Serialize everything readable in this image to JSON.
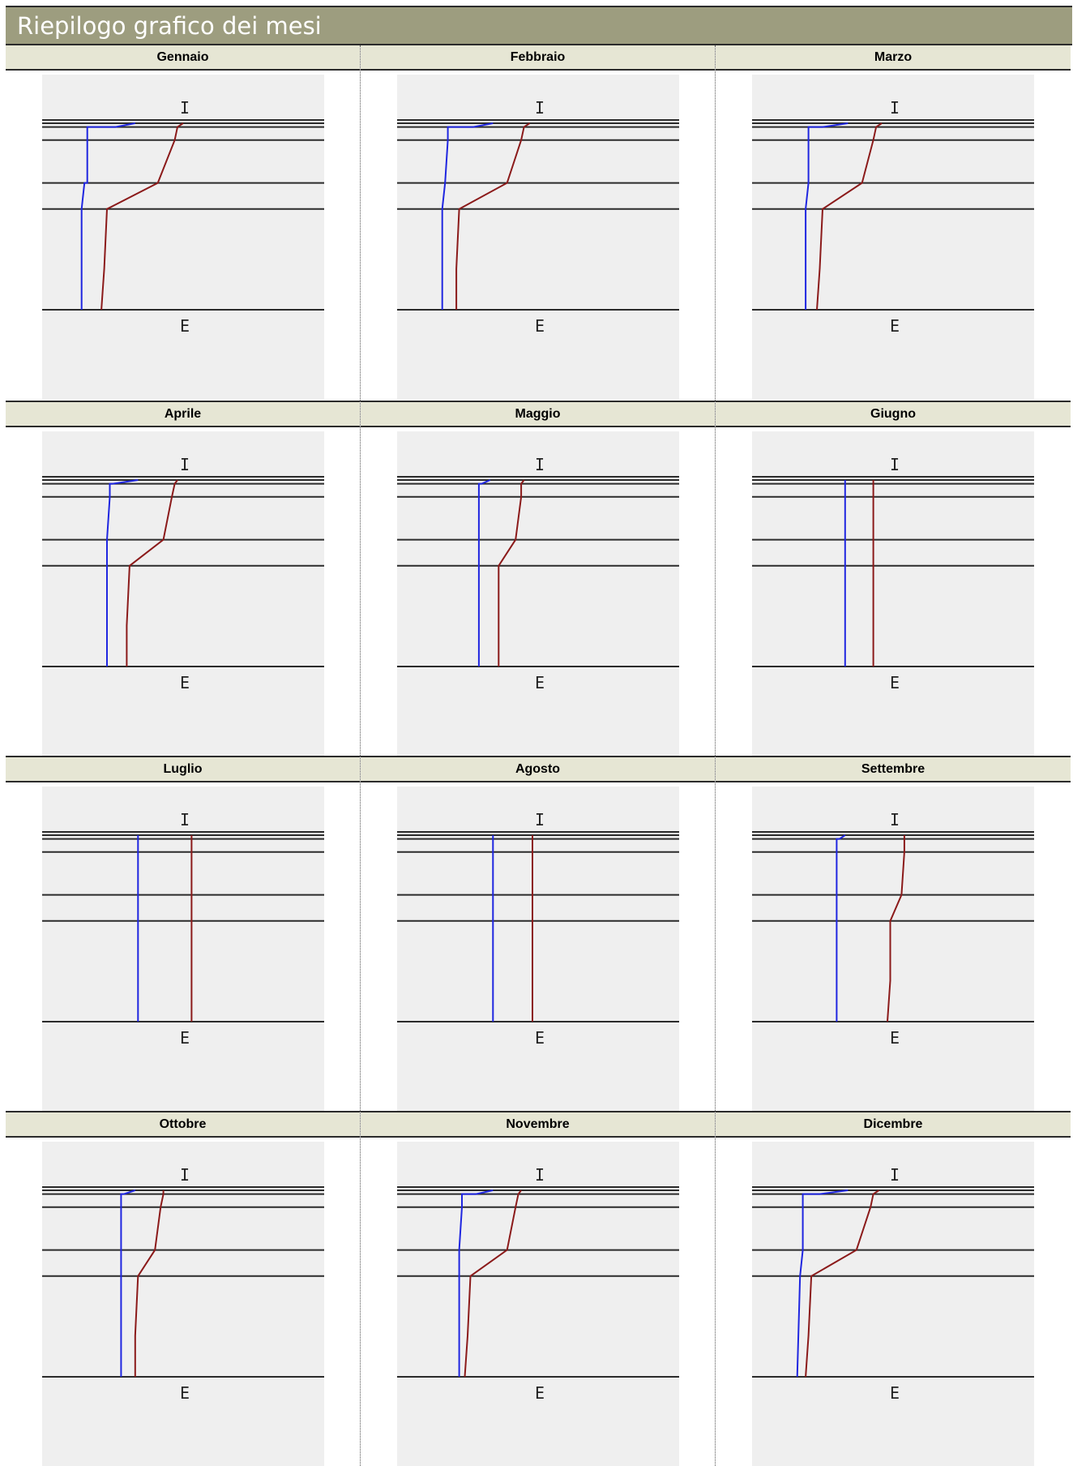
{
  "title": "Riepilogo grafico dei mesi",
  "colors": {
    "header_bg": "#9d9d7f",
    "cell_header_bg": "#e6e6d4",
    "plot_bg": "#efefef",
    "series_blue": "#1f26e0",
    "series_red": "#8b1a1a",
    "layer_lines": "#2b2b2b"
  },
  "chart_data": [
    {
      "type": "line",
      "title": "Gennaio",
      "top_label": "I",
      "bottom_label": "E",
      "layers": [
        0,
        0.02,
        0.09,
        0.32,
        0.46,
        1.0
      ],
      "series": [
        {
          "color": "#1f26e0",
          "points": [
            [
              0.33,
              0
            ],
            [
              0.26,
              0.02
            ],
            [
              0.16,
              0.02
            ],
            [
              0.16,
              0.09
            ],
            [
              0.16,
              0.32
            ],
            [
              0.15,
              0.32
            ],
            [
              0.14,
              0.46
            ],
            [
              0.14,
              1.0
            ]
          ]
        },
        {
          "color": "#8b1a1a",
          "points": [
            [
              0.5,
              0
            ],
            [
              0.48,
              0.02
            ],
            [
              0.47,
              0.09
            ],
            [
              0.41,
              0.32
            ],
            [
              0.23,
              0.46
            ],
            [
              0.22,
              0.78
            ],
            [
              0.21,
              1.0
            ]
          ]
        }
      ]
    },
    {
      "type": "line",
      "title": "Febbraio",
      "top_label": "I",
      "bottom_label": "E",
      "layers": [
        0,
        0.02,
        0.09,
        0.32,
        0.46,
        1.0
      ],
      "series": [
        {
          "color": "#1f26e0",
          "points": [
            [
              0.34,
              0
            ],
            [
              0.27,
              0.02
            ],
            [
              0.18,
              0.02
            ],
            [
              0.18,
              0.09
            ],
            [
              0.17,
              0.32
            ],
            [
              0.16,
              0.46
            ],
            [
              0.16,
              1.0
            ]
          ]
        },
        {
          "color": "#8b1a1a",
          "points": [
            [
              0.47,
              0
            ],
            [
              0.45,
              0.02
            ],
            [
              0.44,
              0.09
            ],
            [
              0.39,
              0.32
            ],
            [
              0.22,
              0.46
            ],
            [
              0.21,
              0.78
            ],
            [
              0.21,
              1.0
            ]
          ]
        }
      ]
    },
    {
      "type": "line",
      "title": "Marzo",
      "top_label": "I",
      "bottom_label": "E",
      "layers": [
        0,
        0.02,
        0.09,
        0.32,
        0.46,
        1.0
      ],
      "series": [
        {
          "color": "#1f26e0",
          "points": [
            [
              0.34,
              0
            ],
            [
              0.25,
              0.02
            ],
            [
              0.2,
              0.02
            ],
            [
              0.2,
              0.09
            ],
            [
              0.2,
              0.32
            ],
            [
              0.19,
              0.46
            ],
            [
              0.19,
              1.0
            ]
          ]
        },
        {
          "color": "#8b1a1a",
          "points": [
            [
              0.46,
              0
            ],
            [
              0.44,
              0.02
            ],
            [
              0.43,
              0.09
            ],
            [
              0.39,
              0.32
            ],
            [
              0.25,
              0.46
            ],
            [
              0.24,
              0.78
            ],
            [
              0.23,
              1.0
            ]
          ]
        }
      ]
    },
    {
      "type": "line",
      "title": "Aprile",
      "top_label": "I",
      "bottom_label": "E",
      "layers": [
        0,
        0.02,
        0.09,
        0.32,
        0.46,
        1.0
      ],
      "series": [
        {
          "color": "#1f26e0",
          "points": [
            [
              0.34,
              0
            ],
            [
              0.25,
              0.02
            ],
            [
              0.24,
              0.02
            ],
            [
              0.24,
              0.09
            ],
            [
              0.23,
              0.32
            ],
            [
              0.23,
              0.46
            ],
            [
              0.23,
              1.0
            ]
          ]
        },
        {
          "color": "#8b1a1a",
          "points": [
            [
              0.48,
              0
            ],
            [
              0.47,
              0.02
            ],
            [
              0.46,
              0.09
            ],
            [
              0.43,
              0.32
            ],
            [
              0.31,
              0.46
            ],
            [
              0.3,
              0.78
            ],
            [
              0.3,
              1.0
            ]
          ]
        }
      ]
    },
    {
      "type": "line",
      "title": "Maggio",
      "top_label": "I",
      "bottom_label": "E",
      "layers": [
        0,
        0.02,
        0.09,
        0.32,
        0.46,
        1.0
      ],
      "series": [
        {
          "color": "#1f26e0",
          "points": [
            [
              0.33,
              0
            ],
            [
              0.3,
              0.02
            ],
            [
              0.29,
              0.02
            ],
            [
              0.29,
              0.09
            ],
            [
              0.29,
              0.32
            ],
            [
              0.29,
              0.46
            ],
            [
              0.29,
              1.0
            ]
          ]
        },
        {
          "color": "#8b1a1a",
          "points": [
            [
              0.45,
              0
            ],
            [
              0.44,
              0.02
            ],
            [
              0.44,
              0.09
            ],
            [
              0.42,
              0.32
            ],
            [
              0.36,
              0.46
            ],
            [
              0.36,
              1.0
            ]
          ]
        }
      ]
    },
    {
      "type": "line",
      "title": "Giugno",
      "top_label": "I",
      "bottom_label": "E",
      "layers": [
        0,
        0.02,
        0.09,
        0.32,
        0.46,
        1.0
      ],
      "series": [
        {
          "color": "#1f26e0",
          "points": [
            [
              0.33,
              0
            ],
            [
              0.33,
              1.0
            ]
          ]
        },
        {
          "color": "#8b1a1a",
          "points": [
            [
              0.43,
              0
            ],
            [
              0.43,
              1.0
            ]
          ]
        }
      ]
    },
    {
      "type": "line",
      "title": "Luglio",
      "top_label": "I",
      "bottom_label": "E",
      "layers": [
        0,
        0.02,
        0.09,
        0.32,
        0.46,
        1.0
      ],
      "series": [
        {
          "color": "#1f26e0",
          "points": [
            [
              0.34,
              0
            ],
            [
              0.34,
              1.0
            ]
          ]
        },
        {
          "color": "#8b1a1a",
          "points": [
            [
              0.53,
              0
            ],
            [
              0.53,
              1.0
            ]
          ]
        }
      ]
    },
    {
      "type": "line",
      "title": "Agosto",
      "top_label": "I",
      "bottom_label": "E",
      "layers": [
        0,
        0.02,
        0.09,
        0.32,
        0.46,
        1.0
      ],
      "series": [
        {
          "color": "#1f26e0",
          "points": [
            [
              0.34,
              0
            ],
            [
              0.34,
              1.0
            ]
          ]
        },
        {
          "color": "#8b1a1a",
          "points": [
            [
              0.48,
              0
            ],
            [
              0.48,
              1.0
            ]
          ]
        }
      ]
    },
    {
      "type": "line",
      "title": "Settembre",
      "top_label": "I",
      "bottom_label": "E",
      "layers": [
        0,
        0.02,
        0.09,
        0.32,
        0.46,
        1.0
      ],
      "series": [
        {
          "color": "#1f26e0",
          "points": [
            [
              0.33,
              0
            ],
            [
              0.31,
              0.02
            ],
            [
              0.3,
              0.02
            ],
            [
              0.3,
              0.09
            ],
            [
              0.3,
              0.32
            ],
            [
              0.3,
              0.46
            ],
            [
              0.3,
              1.0
            ]
          ]
        },
        {
          "color": "#8b1a1a",
          "points": [
            [
              0.54,
              0
            ],
            [
              0.54,
              0.02
            ],
            [
              0.54,
              0.09
            ],
            [
              0.53,
              0.32
            ],
            [
              0.49,
              0.46
            ],
            [
              0.49,
              0.78
            ],
            [
              0.48,
              1.0
            ]
          ]
        }
      ]
    },
    {
      "type": "line",
      "title": "Ottobre",
      "top_label": "I",
      "bottom_label": "E",
      "layers": [
        0,
        0.02,
        0.09,
        0.32,
        0.46,
        1.0
      ],
      "series": [
        {
          "color": "#1f26e0",
          "points": [
            [
              0.33,
              0
            ],
            [
              0.29,
              0.02
            ],
            [
              0.28,
              0.02
            ],
            [
              0.28,
              0.09
            ],
            [
              0.28,
              0.32
            ],
            [
              0.28,
              0.46
            ],
            [
              0.28,
              1.0
            ]
          ]
        },
        {
          "color": "#8b1a1a",
          "points": [
            [
              0.43,
              0
            ],
            [
              0.43,
              0.02
            ],
            [
              0.42,
              0.09
            ],
            [
              0.4,
              0.32
            ],
            [
              0.34,
              0.46
            ],
            [
              0.33,
              0.78
            ],
            [
              0.33,
              1.0
            ]
          ]
        }
      ]
    },
    {
      "type": "line",
      "title": "Novembre",
      "top_label": "I",
      "bottom_label": "E",
      "layers": [
        0,
        0.02,
        0.09,
        0.32,
        0.46,
        1.0
      ],
      "series": [
        {
          "color": "#1f26e0",
          "points": [
            [
              0.34,
              0
            ],
            [
              0.28,
              0.02
            ],
            [
              0.23,
              0.02
            ],
            [
              0.23,
              0.09
            ],
            [
              0.22,
              0.32
            ],
            [
              0.22,
              0.46
            ],
            [
              0.22,
              1.0
            ]
          ]
        },
        {
          "color": "#8b1a1a",
          "points": [
            [
              0.44,
              0
            ],
            [
              0.43,
              0.02
            ],
            [
              0.42,
              0.09
            ],
            [
              0.39,
              0.32
            ],
            [
              0.26,
              0.46
            ],
            [
              0.25,
              0.78
            ],
            [
              0.24,
              1.0
            ]
          ]
        }
      ]
    },
    {
      "type": "line",
      "title": "Dicembre",
      "top_label": "I",
      "bottom_label": "E",
      "layers": [
        0,
        0.02,
        0.09,
        0.32,
        0.46,
        1.0
      ],
      "series": [
        {
          "color": "#1f26e0",
          "points": [
            [
              0.34,
              0
            ],
            [
              0.24,
              0.02
            ],
            [
              0.18,
              0.02
            ],
            [
              0.18,
              0.09
            ],
            [
              0.18,
              0.32
            ],
            [
              0.17,
              0.46
            ],
            [
              0.16,
              1.0
            ]
          ]
        },
        {
          "color": "#8b1a1a",
          "points": [
            [
              0.45,
              0
            ],
            [
              0.43,
              0.02
            ],
            [
              0.42,
              0.09
            ],
            [
              0.37,
              0.32
            ],
            [
              0.21,
              0.46
            ],
            [
              0.2,
              0.78
            ],
            [
              0.19,
              1.0
            ]
          ]
        }
      ]
    }
  ]
}
